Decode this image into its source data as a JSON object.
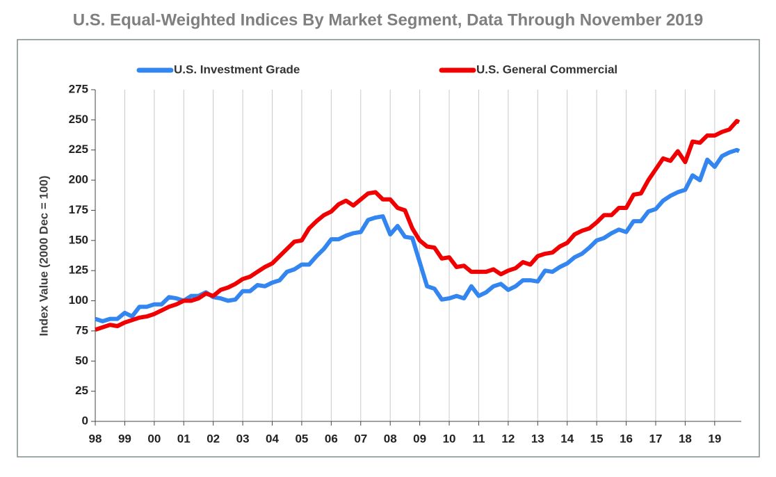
{
  "chart_data": {
    "type": "line",
    "title": "U.S. Equal-Weighted Indices By Market Segment, Data Through November 2019",
    "y_label": "Index Value (2000 Dec = 100)",
    "x": [
      1998,
      1998.25,
      1998.5,
      1998.75,
      1999,
      1999.25,
      1999.5,
      1999.75,
      2000,
      2000.25,
      2000.5,
      2000.75,
      2001,
      2001.25,
      2001.5,
      2001.75,
      2002,
      2002.25,
      2002.5,
      2002.75,
      2003,
      2003.25,
      2003.5,
      2003.75,
      2004,
      2004.25,
      2004.5,
      2004.75,
      2005,
      2005.25,
      2005.5,
      2005.75,
      2006,
      2006.25,
      2006.5,
      2006.75,
      2007,
      2007.25,
      2007.5,
      2007.75,
      2008,
      2008.25,
      2008.5,
      2008.75,
      2009,
      2009.25,
      2009.5,
      2009.75,
      2010,
      2010.25,
      2010.5,
      2010.75,
      2011,
      2011.25,
      2011.5,
      2011.75,
      2012,
      2012.25,
      2012.5,
      2012.75,
      2013,
      2013.25,
      2013.5,
      2013.75,
      2014,
      2014.25,
      2014.5,
      2014.75,
      2015,
      2015.25,
      2015.5,
      2015.75,
      2016,
      2016.25,
      2016.5,
      2016.75,
      2017,
      2017.25,
      2017.5,
      2017.75,
      2018,
      2018.25,
      2018.5,
      2018.75,
      2019,
      2019.25,
      2019.5,
      2019.75,
      2019.83
    ],
    "series": [
      {
        "name": "U.S. Investment Grade",
        "color": "#3385f0",
        "values": [
          85,
          83,
          85,
          85,
          90,
          87,
          95,
          95,
          97,
          97,
          103,
          102,
          100,
          104,
          104,
          107,
          103,
          102,
          100,
          101,
          108,
          108,
          113,
          112,
          115,
          117,
          124,
          126,
          130,
          130,
          137,
          143,
          151,
          151,
          154,
          156,
          157,
          167,
          169,
          170,
          155,
          162,
          153,
          152,
          132,
          112,
          110,
          101,
          102,
          104,
          102,
          112,
          104,
          107,
          112,
          114,
          109,
          112,
          117,
          117,
          116,
          125,
          124,
          128,
          131,
          136,
          139,
          144,
          150,
          152,
          156,
          159,
          157,
          166,
          166,
          174,
          176,
          183,
          187,
          190,
          192,
          204,
          200,
          217,
          211,
          220,
          223,
          225,
          224
        ]
      },
      {
        "name": "U.S. General Commercial",
        "color": "#f00000",
        "values": [
          76,
          78,
          80,
          79,
          82,
          84,
          86,
          87,
          89,
          92,
          95,
          97,
          100,
          100,
          102,
          106,
          104,
          109,
          111,
          114,
          118,
          120,
          124,
          128,
          131,
          137,
          143,
          149,
          150,
          160,
          166,
          171,
          174,
          180,
          183,
          179,
          184,
          189,
          190,
          184,
          184,
          177,
          175,
          160,
          150,
          145,
          144,
          135,
          136,
          128,
          129,
          124,
          124,
          124,
          126,
          122,
          125,
          127,
          132,
          130,
          137,
          139,
          140,
          145,
          148,
          155,
          158,
          160,
          165,
          171,
          171,
          177,
          177,
          188,
          189,
          200,
          209,
          218,
          216,
          224,
          215,
          232,
          231,
          237,
          237,
          240,
          242,
          249,
          248
        ]
      }
    ],
    "xlim": [
      1998,
      2019.9
    ],
    "xticks": [
      {
        "value": 1998,
        "label": "98"
      },
      {
        "value": 1999,
        "label": "99"
      },
      {
        "value": 2000,
        "label": "00"
      },
      {
        "value": 2001,
        "label": "01"
      },
      {
        "value": 2002,
        "label": "02"
      },
      {
        "value": 2003,
        "label": "03"
      },
      {
        "value": 2004,
        "label": "04"
      },
      {
        "value": 2005,
        "label": "05"
      },
      {
        "value": 2006,
        "label": "06"
      },
      {
        "value": 2007,
        "label": "07"
      },
      {
        "value": 2008,
        "label": "08"
      },
      {
        "value": 2009,
        "label": "09"
      },
      {
        "value": 2010,
        "label": "10"
      },
      {
        "value": 2011,
        "label": "11"
      },
      {
        "value": 2012,
        "label": "12"
      },
      {
        "value": 2013,
        "label": "13"
      },
      {
        "value": 2014,
        "label": "14"
      },
      {
        "value": 2015,
        "label": "15"
      },
      {
        "value": 2016,
        "label": "16"
      },
      {
        "value": 2017,
        "label": "17"
      },
      {
        "value": 2018,
        "label": "18"
      },
      {
        "value": 2019,
        "label": "19"
      }
    ],
    "ylim": [
      0,
      275
    ],
    "yticks": [
      0,
      25,
      50,
      75,
      100,
      125,
      150,
      175,
      200,
      225,
      250,
      275
    ],
    "grid": "x",
    "legend": "top"
  }
}
